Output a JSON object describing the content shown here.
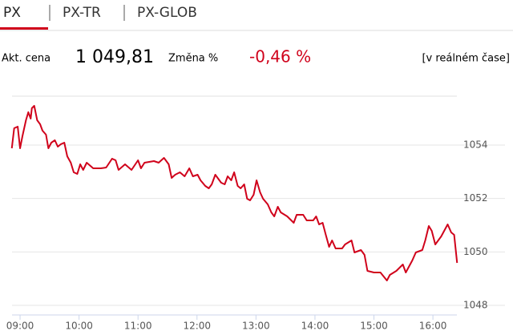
{
  "tabs": [
    "PX",
    "PX-TR",
    "PX-GLOB"
  ],
  "info": {
    "price_label": "Akt. cena",
    "price": "1 049,81",
    "change_label": "Změna %",
    "change": "-0,46 %",
    "mode": "[v reálném čase]"
  },
  "chart_data": {
    "type": "line",
    "xlim": [
      8.85,
      16.42
    ],
    "xticks": [
      {
        "value": 9,
        "label": "09:00"
      },
      {
        "value": 10,
        "label": "10:00"
      },
      {
        "value": 11,
        "label": "11:00"
      },
      {
        "value": 12,
        "label": "12:00"
      },
      {
        "value": 13,
        "label": "13:00"
      },
      {
        "value": 14,
        "label": "14:00"
      },
      {
        "value": 15,
        "label": "15:00"
      },
      {
        "value": 16,
        "label": "16:00"
      }
    ],
    "ylim": [
      1047.64,
      1055.83
    ],
    "yticks": [
      1048,
      1050,
      1052,
      1054
    ],
    "grid": true,
    "series": [
      {
        "color": "#d0021b",
        "x": [
          8.86,
          8.9,
          8.96,
          9.0,
          9.04,
          9.1,
          9.14,
          9.18,
          9.2,
          9.24,
          9.29,
          9.34,
          9.38,
          9.44,
          9.48,
          9.53,
          9.59,
          9.64,
          9.69,
          9.75,
          9.8,
          9.86,
          9.91,
          9.97,
          10.02,
          10.07,
          10.13,
          10.24,
          10.37,
          10.46,
          10.56,
          10.62,
          10.67,
          10.78,
          10.89,
          11.0,
          11.05,
          11.11,
          11.27,
          11.35,
          11.44,
          11.52,
          11.57,
          11.63,
          11.71,
          11.79,
          11.87,
          11.93,
          12.01,
          12.06,
          12.14,
          12.2,
          12.25,
          12.31,
          12.41,
          12.47,
          12.52,
          12.58,
          12.63,
          12.69,
          12.74,
          12.8,
          12.85,
          12.9,
          12.96,
          13.01,
          13.07,
          13.12,
          13.2,
          13.26,
          13.31,
          13.37,
          13.42,
          13.53,
          13.64,
          13.69,
          13.8,
          13.86,
          13.97,
          14.02,
          14.07,
          14.13,
          14.18,
          14.24,
          14.29,
          14.35,
          14.46,
          14.51,
          14.62,
          14.67,
          14.78,
          14.84,
          14.89,
          15.0,
          15.11,
          15.22,
          15.27,
          15.38,
          15.49,
          15.54,
          15.65,
          15.71,
          15.82,
          15.87,
          15.93,
          15.98,
          16.04,
          16.14,
          16.25,
          16.31,
          16.36,
          16.41
        ],
        "values": [
          1053.88,
          1054.63,
          1054.69,
          1053.88,
          1054.33,
          1054.93,
          1055.23,
          1054.99,
          1055.38,
          1055.47,
          1054.93,
          1054.78,
          1054.54,
          1054.39,
          1053.88,
          1054.09,
          1054.18,
          1053.94,
          1054.03,
          1054.09,
          1053.58,
          1053.34,
          1052.98,
          1052.92,
          1053.28,
          1053.07,
          1053.34,
          1053.13,
          1053.13,
          1053.16,
          1053.49,
          1053.43,
          1053.07,
          1053.28,
          1053.07,
          1053.43,
          1053.13,
          1053.34,
          1053.4,
          1053.34,
          1053.52,
          1053.28,
          1052.77,
          1052.89,
          1052.98,
          1052.83,
          1053.13,
          1052.83,
          1052.89,
          1052.68,
          1052.47,
          1052.38,
          1052.53,
          1052.89,
          1052.59,
          1052.53,
          1052.83,
          1052.68,
          1052.98,
          1052.47,
          1052.38,
          1052.53,
          1051.99,
          1051.93,
          1052.14,
          1052.68,
          1052.23,
          1051.99,
          1051.78,
          1051.48,
          1051.33,
          1051.69,
          1051.48,
          1051.33,
          1051.09,
          1051.39,
          1051.39,
          1051.18,
          1051.18,
          1051.33,
          1051.03,
          1051.09,
          1050.67,
          1050.19,
          1050.43,
          1050.13,
          1050.13,
          1050.28,
          1050.43,
          1049.98,
          1050.07,
          1049.89,
          1049.29,
          1049.23,
          1049.23,
          1048.93,
          1049.14,
          1049.29,
          1049.53,
          1049.23,
          1049.68,
          1049.98,
          1050.07,
          1050.43,
          1050.97,
          1050.79,
          1050.28,
          1050.58,
          1051.03,
          1050.73,
          1050.64,
          1049.59
        ]
      }
    ]
  }
}
